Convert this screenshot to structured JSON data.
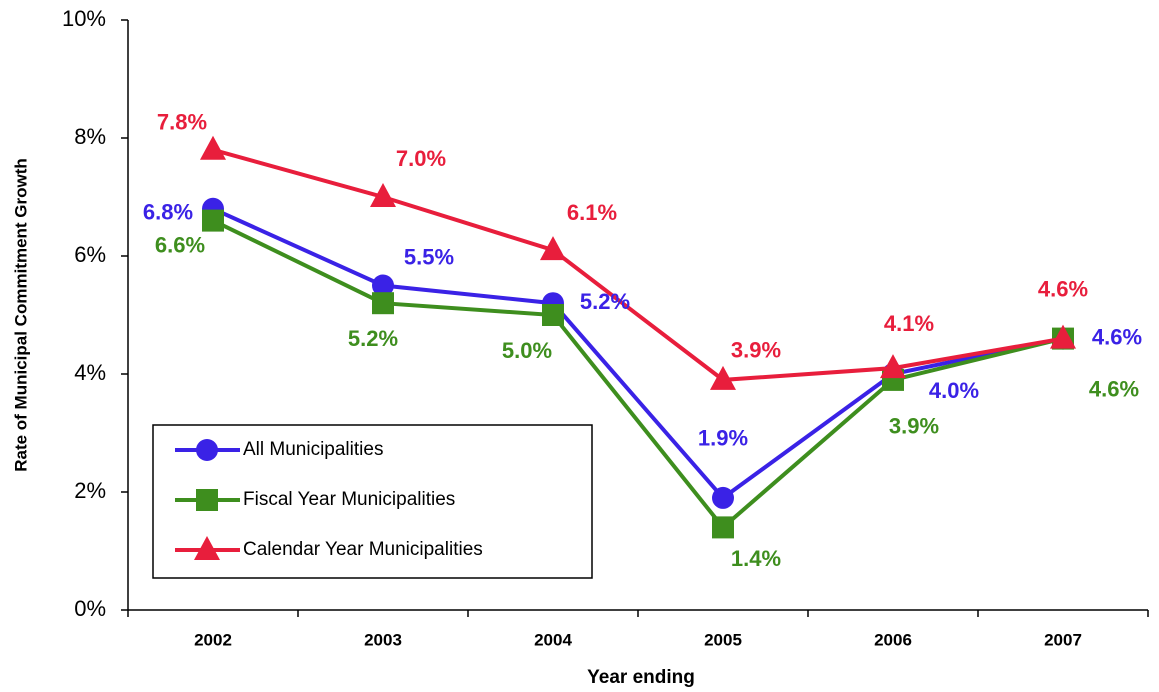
{
  "chart_data": {
    "type": "line",
    "x_label": "Year ending",
    "y_label": "Rate of Municipal Commitment Growth",
    "categories": [
      "2002",
      "2003",
      "2004",
      "2005",
      "2006",
      "2007"
    ],
    "ylim": [
      0,
      10
    ],
    "yticks": [
      {
        "value": 0,
        "label": "0%"
      },
      {
        "value": 2,
        "label": "2%"
      },
      {
        "value": 4,
        "label": "4%"
      },
      {
        "value": 6,
        "label": "6%"
      },
      {
        "value": 8,
        "label": "8%"
      },
      {
        "value": 10,
        "label": "10%"
      }
    ],
    "legend": "lower left",
    "series": [
      {
        "name": "All Municipalities",
        "color": "#3a22e6",
        "marker": "circle",
        "values": [
          6.8,
          5.5,
          5.2,
          1.9,
          4.0,
          4.6
        ],
        "value_labels": [
          "6.8%",
          "5.5%",
          "5.2%",
          "1.9%",
          "4.0%",
          "4.6%"
        ]
      },
      {
        "name": "Fiscal Year Municipalities",
        "color": "#3e8e1e",
        "marker": "square",
        "values": [
          6.6,
          5.2,
          5.0,
          1.4,
          3.9,
          4.6
        ],
        "value_labels": [
          "6.6%",
          "5.2%",
          "5.0%",
          "1.4%",
          "3.9%",
          "4.6%"
        ]
      },
      {
        "name": "Calendar Year Municipalities",
        "color": "#e81e3c",
        "marker": "triangle",
        "values": [
          7.8,
          7.0,
          6.1,
          3.9,
          4.1,
          4.6
        ],
        "value_labels": [
          "7.8%",
          "7.0%",
          "6.1%",
          "3.9%",
          "4.1%",
          "4.6%"
        ]
      }
    ]
  }
}
